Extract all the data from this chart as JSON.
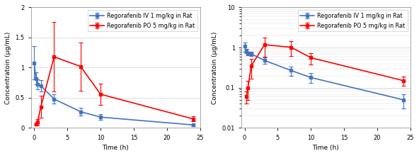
{
  "iv_time": [
    0,
    0.25,
    0.5,
    1,
    3,
    7,
    10,
    24
  ],
  "iv_mean": [
    1.08,
    0.82,
    0.72,
    0.7,
    0.48,
    0.27,
    0.18,
    0.05
  ],
  "iv_err": [
    0.28,
    0.1,
    0.08,
    0.09,
    0.08,
    0.07,
    0.05,
    0.02
  ],
  "po_time": [
    0.25,
    0.5,
    1,
    3,
    7,
    10,
    24
  ],
  "po_mean": [
    0.06,
    0.1,
    0.35,
    1.18,
    1.02,
    0.56,
    0.15
  ],
  "po_err": [
    0.02,
    0.05,
    0.18,
    0.58,
    0.4,
    0.18,
    0.04
  ],
  "iv_color": "#4472C4",
  "po_color": "#FF0000",
  "iv_label": "Regorafenib IV 1 mg/kg in Rat",
  "po_label": "Regorafenib PO 5 mg/kg in Rat",
  "xlabel": "Time (h)",
  "ylabel": "Concentratoin (μg/mL)",
  "xlim": [
    -0.5,
    25
  ],
  "xticks": [
    0,
    5,
    10,
    15,
    20,
    25
  ],
  "ylim_linear": [
    0,
    2
  ],
  "yticks_linear": [
    0,
    0.5,
    1.0,
    1.5,
    2.0
  ],
  "ylim_log": [
    0.01,
    10
  ],
  "bg_color": "#ffffff",
  "plot_bg": "#ffffff",
  "grid_color": "#d8d8d8",
  "marker": "s",
  "markersize": 3.5,
  "linewidth": 1.2,
  "capsize": 2,
  "label_fontsize": 6.5,
  "tick_fontsize": 6,
  "legend_fontsize": 5.8
}
